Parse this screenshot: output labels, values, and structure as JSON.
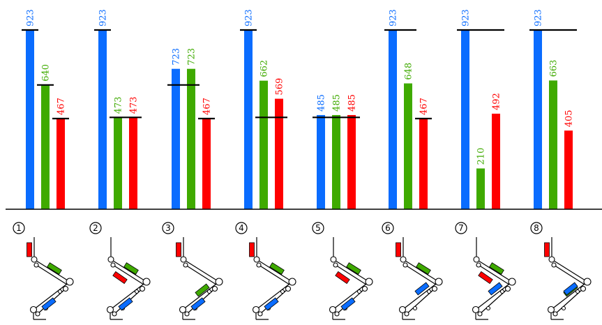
{
  "chart_data": {
    "type": "bar",
    "title": "",
    "xlabel": "",
    "ylabel": "",
    "ylim": [
      0,
      923
    ],
    "grid": false,
    "legend": "none",
    "colors": {
      "blue": "#0a6cff",
      "green": "#3faa00",
      "red": "#ff0000",
      "threshold": "#000000"
    },
    "groups": [
      {
        "label": "1",
        "values": [
          923,
          640,
          467
        ],
        "thresholds": [
          923,
          640,
          467
        ],
        "thresholdSpan": [
          [
            0,
            0
          ],
          [
            1,
            1
          ],
          [
            2,
            2
          ]
        ]
      },
      {
        "label": "2",
        "values": [
          923,
          473,
          473
        ],
        "thresholds": [
          923,
          473
        ],
        "thresholdSpan": [
          [
            0,
            0
          ],
          [
            1,
            2
          ]
        ]
      },
      {
        "label": "3",
        "values": [
          723,
          723,
          467
        ],
        "thresholds": [
          640,
          467
        ],
        "thresholdSpan": [
          [
            0,
            1
          ],
          [
            2,
            2
          ]
        ]
      },
      {
        "label": "4",
        "values": [
          923,
          662,
          569
        ],
        "thresholds": [
          923,
          473
        ],
        "thresholdSpan": [
          [
            0,
            0
          ],
          [
            1,
            2
          ]
        ]
      },
      {
        "label": "5",
        "values": [
          485,
          485,
          485
        ],
        "thresholds": [
          473
        ],
        "thresholdSpan": [
          [
            0,
            2
          ]
        ]
      },
      {
        "label": "6",
        "values": [
          923,
          648,
          467
        ],
        "thresholds": [
          923,
          467
        ],
        "thresholdSpan": [
          [
            0,
            1
          ],
          [
            2,
            2
          ]
        ]
      },
      {
        "label": "7",
        "values": [
          923,
          210,
          492
        ],
        "thresholds": [
          923
        ],
        "thresholdSpan": [
          [
            0,
            2
          ]
        ]
      },
      {
        "label": "8",
        "values": [
          923,
          663,
          405
        ],
        "thresholds": [
          923
        ],
        "thresholdSpan": [
          [
            0,
            2
          ]
        ]
      }
    ],
    "series": [
      {
        "color": "blue"
      },
      {
        "color": "green"
      },
      {
        "color": "red"
      }
    ]
  },
  "diagrams": [
    {
      "label": "1",
      "config": "a"
    },
    {
      "label": "2",
      "config": "b"
    },
    {
      "label": "3",
      "config": "c"
    },
    {
      "label": "4",
      "config": "a"
    },
    {
      "label": "5",
      "config": "b"
    },
    {
      "label": "6",
      "config": "d"
    },
    {
      "label": "7",
      "config": "e"
    },
    {
      "label": "8",
      "config": "f"
    }
  ]
}
